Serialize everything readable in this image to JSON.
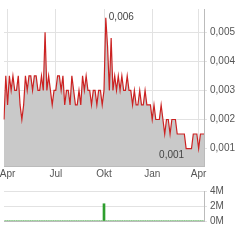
{
  "chart_data": [
    {
      "type": "area",
      "categories": [
        null,
        null,
        "Apr",
        null,
        null,
        null,
        null,
        null,
        null,
        null,
        null,
        null,
        null,
        null,
        null,
        null,
        null,
        null,
        null,
        null,
        null,
        null,
        null,
        null,
        null,
        null,
        null,
        null,
        null,
        "Jul",
        null,
        null,
        null,
        null,
        null,
        null,
        null,
        null,
        null,
        null,
        null,
        null,
        null,
        null,
        null,
        null,
        null,
        null,
        null,
        null,
        null,
        null,
        null,
        null,
        null,
        null,
        "Okt",
        null,
        null,
        null,
        null,
        null,
        null,
        null,
        null,
        null,
        null,
        null,
        null,
        null,
        null,
        null,
        null,
        null,
        null,
        null,
        null,
        null,
        null,
        null,
        null,
        null,
        null,
        "Jan",
        null,
        null,
        null,
        null,
        null,
        null,
        null,
        null,
        null,
        null,
        null,
        null,
        null,
        null,
        null,
        null,
        null,
        null,
        null,
        null,
        null,
        null,
        null,
        null,
        null,
        "Apr",
        null,
        null,
        null
      ],
      "series": [
        {
          "color": "#cc2222",
          "values": [
            0.002,
            0.0035,
            0.0025,
            0.0035,
            0.003,
            0.0035,
            0.003,
            0.003,
            0.0035,
            0.0025,
            0.002,
            0.0025,
            0.0035,
            0.003,
            0.0035,
            0.0035,
            0.003,
            0.0035,
            0.0035,
            0.003,
            0.003,
            0.0035,
            0.003,
            0.005,
            0.003,
            0.0035,
            0.003,
            0.0025,
            0.003,
            0.003,
            0.0035,
            0.0035,
            0.003,
            0.0035,
            0.0025,
            0.003,
            0.003,
            0.0025,
            0.0035,
            0.003,
            0.0025,
            0.0025,
            0.003,
            0.0025,
            0.0035,
            0.003,
            0.0035,
            0.003,
            0.003,
            0.0025,
            0.003,
            0.003,
            0.0025,
            0.003,
            0.003,
            0.0025,
            0.003,
            0.0055,
            0.0045,
            0.003,
            0.0048,
            0.003,
            0.0035,
            0.003,
            0.0035,
            0.003,
            0.0035,
            0.003,
            0.003,
            0.0035,
            0.003,
            0.003,
            0.0025,
            0.003,
            0.0025,
            0.0025,
            0.003,
            0.0025,
            0.0025,
            0.003,
            0.0025,
            0.0025,
            0.0025,
            0.002,
            0.0025,
            0.002,
            0.002,
            0.002,
            0.0025,
            0.002,
            0.0015,
            0.002,
            0.002,
            0.0015,
            0.002,
            0.002,
            0.002,
            0.0015,
            0.0015,
            0.0015,
            0.0015,
            0.0015,
            0.001,
            0.001,
            0.001,
            0.001,
            0.0015,
            0.0015,
            0.0015,
            0.001,
            0.0015,
            0.0015,
            0.0015
          ]
        }
      ],
      "ylim": [
        0.0004,
        0.0058
      ],
      "yticks": [
        {
          "value": 0.001,
          "label": "0,001"
        },
        {
          "value": 0.002,
          "label": "0,002"
        },
        {
          "value": 0.003,
          "label": "0,003"
        },
        {
          "value": 0.004,
          "label": "0,004"
        },
        {
          "value": 0.005,
          "label": "0,005"
        }
      ],
      "grid": true,
      "annotations": [
        {
          "label": "0,006",
          "index": 57,
          "value": 0.0055
        },
        {
          "label": "0,001",
          "index": 102,
          "value": 0.001
        }
      ]
    },
    {
      "type": "bar",
      "categories": [
        null,
        null,
        null,
        null,
        null,
        null,
        null,
        null,
        null,
        null,
        null,
        null,
        null,
        null,
        null,
        null,
        null,
        null,
        null,
        null,
        null,
        null,
        null,
        null,
        null,
        null,
        null,
        null,
        null,
        null,
        null,
        null,
        null,
        null,
        null,
        null,
        null,
        null,
        null,
        null,
        null,
        null,
        null,
        null,
        null,
        null,
        null,
        null,
        null,
        null,
        null,
        null,
        null,
        null,
        null,
        null,
        null,
        null,
        null,
        null,
        null,
        null,
        null,
        null,
        null,
        null,
        null,
        null,
        null,
        null,
        null,
        null,
        null,
        null,
        null,
        null,
        null,
        null,
        null,
        null,
        null,
        null,
        null,
        null,
        null,
        null,
        null,
        null,
        null,
        null,
        null,
        null,
        null,
        null,
        null,
        null,
        null,
        null,
        null,
        null,
        null,
        null,
        null,
        null,
        null,
        null,
        null,
        null,
        null,
        null,
        null,
        null,
        null
      ],
      "series": [
        {
          "color": "#2e9e2e",
          "values": [
            0,
            0,
            0,
            0,
            0,
            0,
            0,
            0,
            0,
            0,
            0,
            0,
            0,
            0,
            0,
            0,
            0,
            0,
            0,
            0,
            0,
            0,
            0,
            0,
            0,
            0,
            0,
            0,
            0,
            0,
            0,
            0,
            0,
            0,
            0,
            0,
            0,
            0,
            0,
            0,
            0,
            0,
            0,
            0,
            0,
            0,
            0,
            0,
            0,
            0,
            0,
            0,
            0,
            0,
            0,
            0,
            2300000,
            0,
            0,
            0,
            0,
            0,
            0,
            0,
            0,
            0,
            0,
            0,
            0,
            0,
            0,
            0,
            0,
            0,
            0,
            0,
            0,
            0,
            0,
            0,
            0,
            0,
            0,
            0,
            0,
            0,
            0,
            0,
            0,
            0,
            0,
            0,
            0,
            0,
            0,
            0,
            0,
            0,
            0,
            0,
            0,
            0,
            0,
            0,
            0,
            0,
            0,
            0,
            0,
            0,
            0,
            0,
            0
          ]
        }
      ],
      "ylim": [
        0,
        4000000
      ],
      "yticks": [
        {
          "value": 0,
          "label": "0M"
        },
        {
          "value": 2000000,
          "label": "2M"
        },
        {
          "value": 4000000,
          "label": "4M"
        }
      ],
      "grid": true,
      "tick_labels": "y"
    }
  ]
}
